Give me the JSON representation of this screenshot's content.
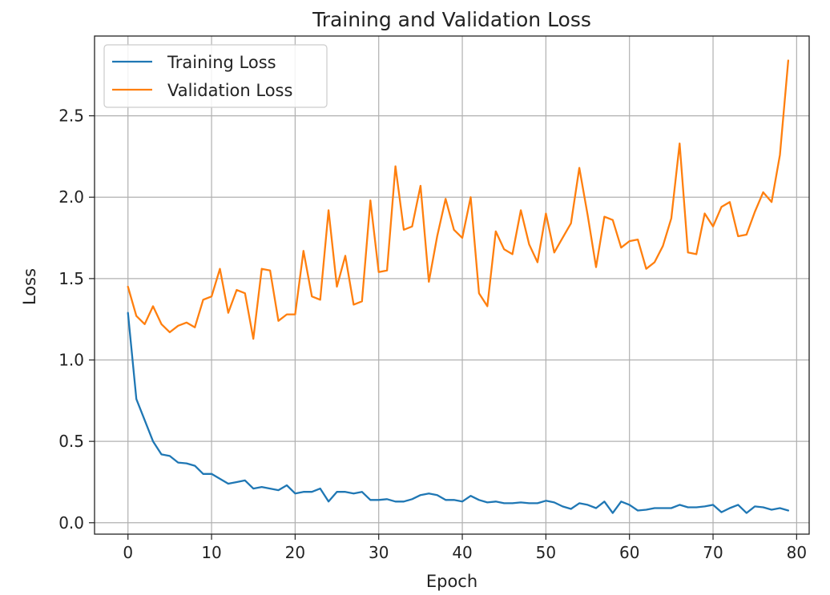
{
  "chart_data": {
    "type": "line",
    "title": "Training and Validation Loss",
    "xlabel": "Epoch",
    "ylabel": "Loss",
    "xlim": [
      -4,
      81.5
    ],
    "ylim": [
      -0.07,
      2.99
    ],
    "xticks": [
      0,
      10,
      20,
      30,
      40,
      50,
      60,
      70,
      80
    ],
    "xtick_labels": [
      "0",
      "10",
      "20",
      "30",
      "40",
      "50",
      "60",
      "70",
      "80"
    ],
    "yticks": [
      0.0,
      0.5,
      1.0,
      1.5,
      2.0,
      2.5
    ],
    "ytick_labels": [
      "0.0",
      "0.5",
      "1.0",
      "1.5",
      "2.0",
      "2.5"
    ],
    "grid": true,
    "legend_position": "top-left",
    "x": [
      0,
      1,
      2,
      3,
      4,
      5,
      6,
      7,
      8,
      9,
      10,
      11,
      12,
      13,
      14,
      15,
      16,
      17,
      18,
      19,
      20,
      21,
      22,
      23,
      24,
      25,
      26,
      27,
      28,
      29,
      30,
      31,
      32,
      33,
      34,
      35,
      36,
      37,
      38,
      39,
      40,
      41,
      42,
      43,
      44,
      45,
      46,
      47,
      48,
      49,
      50,
      51,
      52,
      53,
      54,
      55,
      56,
      57,
      58,
      59,
      60,
      61,
      62,
      63,
      64,
      65,
      66,
      67,
      68,
      69,
      70,
      71,
      72,
      73,
      74,
      75,
      76,
      77,
      78,
      79
    ],
    "series": [
      {
        "name": "Training Loss",
        "color": "#1f77b4",
        "values": [
          1.29,
          0.76,
          0.63,
          0.5,
          0.42,
          0.41,
          0.37,
          0.365,
          0.35,
          0.3,
          0.3,
          0.27,
          0.24,
          0.25,
          0.26,
          0.21,
          0.22,
          0.21,
          0.2,
          0.23,
          0.18,
          0.19,
          0.19,
          0.21,
          0.13,
          0.19,
          0.19,
          0.18,
          0.19,
          0.14,
          0.14,
          0.145,
          0.13,
          0.13,
          0.145,
          0.17,
          0.18,
          0.17,
          0.14,
          0.14,
          0.13,
          0.165,
          0.14,
          0.125,
          0.13,
          0.12,
          0.12,
          0.125,
          0.12,
          0.12,
          0.135,
          0.125,
          0.1,
          0.085,
          0.12,
          0.11,
          0.09,
          0.13,
          0.06,
          0.13,
          0.11,
          0.075,
          0.08,
          0.09,
          0.09,
          0.09,
          0.11,
          0.095,
          0.095,
          0.1,
          0.11,
          0.065,
          0.09,
          0.11,
          0.06,
          0.1,
          0.095,
          0.08,
          0.09,
          0.075
        ]
      },
      {
        "name": "Validation Loss",
        "color": "#ff7f0e",
        "values": [
          1.45,
          1.27,
          1.22,
          1.33,
          1.22,
          1.17,
          1.21,
          1.23,
          1.2,
          1.37,
          1.39,
          1.56,
          1.29,
          1.43,
          1.41,
          1.13,
          1.56,
          1.55,
          1.24,
          1.28,
          1.28,
          1.67,
          1.39,
          1.37,
          1.92,
          1.45,
          1.64,
          1.34,
          1.36,
          1.98,
          1.54,
          1.55,
          2.19,
          1.8,
          1.82,
          2.07,
          1.48,
          1.76,
          1.99,
          1.8,
          1.75,
          2.0,
          1.41,
          1.33,
          1.79,
          1.68,
          1.65,
          1.92,
          1.71,
          1.6,
          1.9,
          1.66,
          1.75,
          1.84,
          2.18,
          1.89,
          1.57,
          1.88,
          1.86,
          1.69,
          1.73,
          1.74,
          1.56,
          1.6,
          1.7,
          1.87,
          2.33,
          1.66,
          1.65,
          1.9,
          1.82,
          1.94,
          1.97,
          1.76,
          1.77,
          1.91,
          2.03,
          1.97,
          2.26,
          2.84
        ]
      }
    ]
  }
}
